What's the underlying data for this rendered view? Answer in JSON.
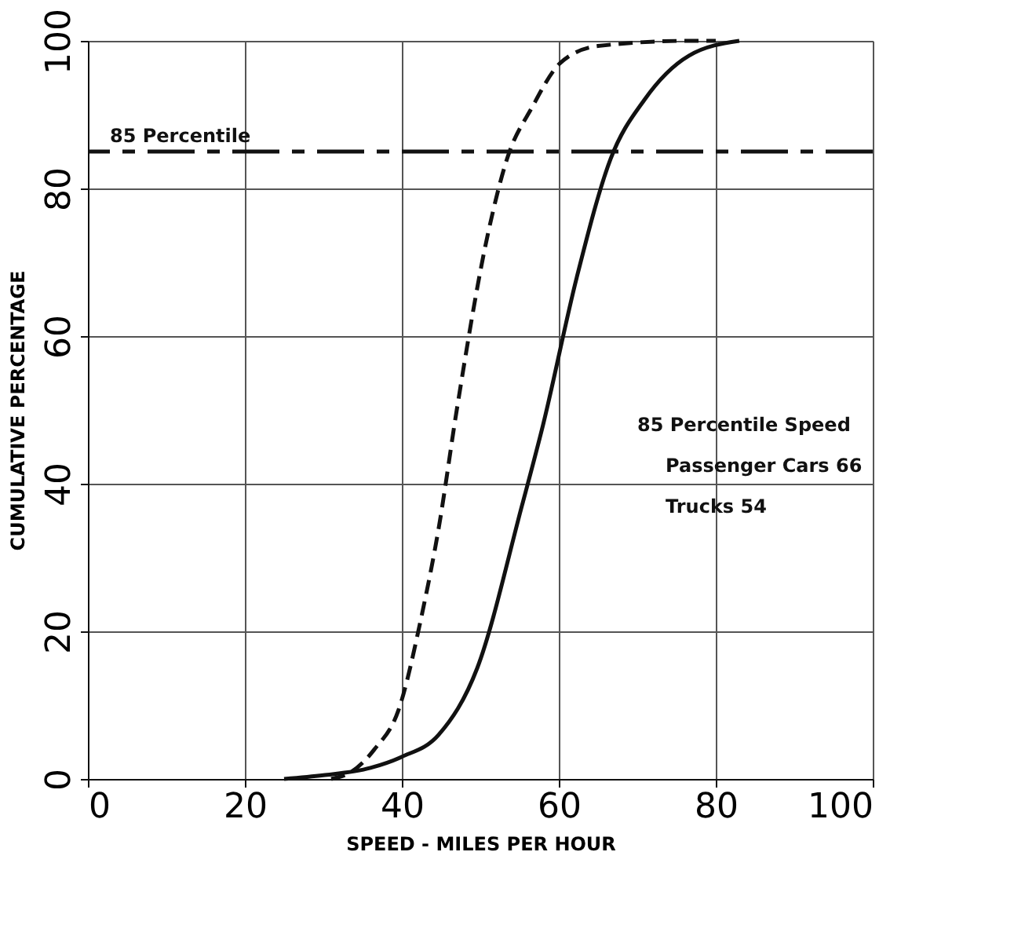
{
  "chart_data": {
    "type": "line",
    "xlabel": "SPEED - MILES PER HOUR",
    "ylabel": "CUMULATIVE PERCENTAGE",
    "xlim": [
      0,
      100
    ],
    "xticks": [
      0,
      20,
      40,
      60,
      80,
      100
    ],
    "ylim": [
      0,
      100
    ],
    "yticks": [
      0,
      20,
      40,
      60,
      80,
      100
    ],
    "grid": true,
    "marker": "none",
    "series": [
      {
        "color": "#111111",
        "line_style": "solid",
        "x": [
          25,
          30,
          36,
          40,
          44.7,
          49.6,
          55.3,
          58,
          62.3,
          66.6,
          70.9,
          76.6,
          83
        ],
        "values": [
          0,
          0.5,
          1.5,
          3,
          6,
          15,
          37,
          48,
          68,
          84,
          92,
          98,
          100
        ]
      },
      {
        "color": "#111111",
        "line_style": "dashed",
        "x": [
          31,
          33.6,
          36.5,
          39.6,
          42.5,
          44.7,
          47,
          51,
          53.4,
          56.6,
          60.2,
          65,
          76.6,
          80
        ],
        "values": [
          0,
          1,
          4,
          9.4,
          22,
          34,
          50,
          74,
          84,
          91,
          97,
          99.3,
          100,
          100
        ]
      }
    ],
    "ref_lines": [
      {
        "axis": "y",
        "value": 85,
        "label": "85 Percentile",
        "line_style": "dashed",
        "color": "#111111"
      }
    ],
    "annotations": [
      "85 Percentile Speed",
      "Passenger Cars 66",
      "Trucks 54"
    ]
  }
}
